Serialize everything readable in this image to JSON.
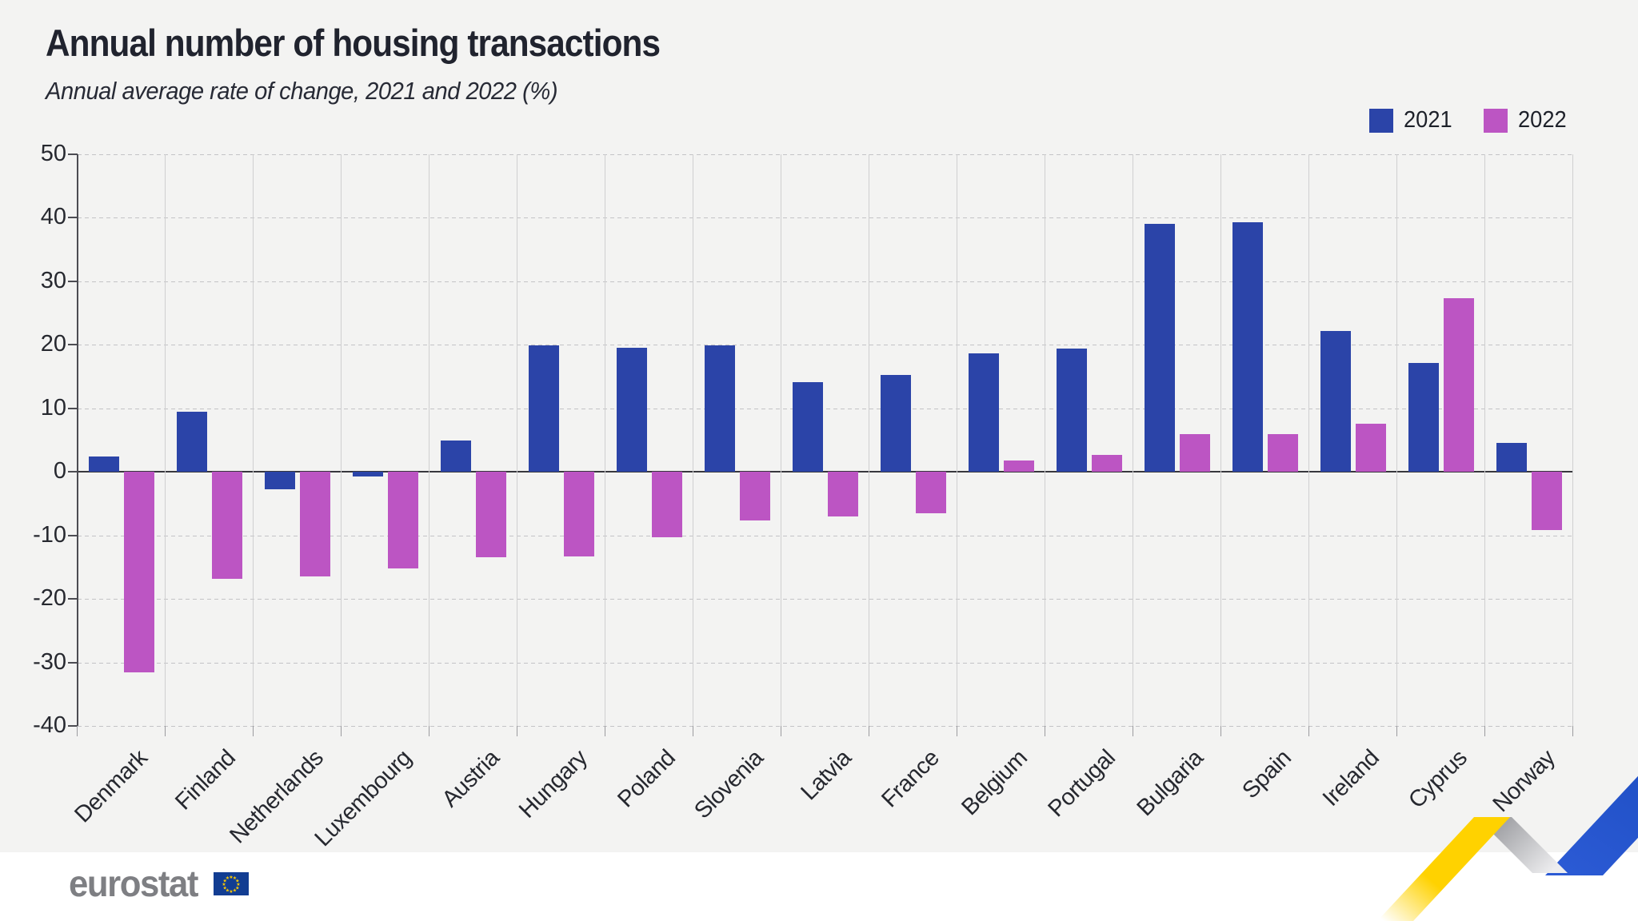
{
  "title": "Annual number of housing transactions",
  "subtitle": "Annual average rate of change, 2021 and 2022 (%)",
  "legend": [
    {
      "label": "2021",
      "color": "#2b44a8"
    },
    {
      "label": "2022",
      "color": "#bc55c3"
    }
  ],
  "chart_data": {
    "type": "bar",
    "title": "Annual number of housing transactions",
    "subtitle": "Annual average rate of change, 2021 and 2022 (%)",
    "categories": [
      "Denmark",
      "Finland",
      "Netherlands",
      "Luxembourg",
      "Austria",
      "Hungary",
      "Poland",
      "Slovenia",
      "Latvia",
      "France",
      "Belgium",
      "Portugal",
      "Bulgaria",
      "Spain",
      "Ireland",
      "Cyprus",
      "Norway"
    ],
    "series": [
      {
        "name": "2021",
        "color": "#2b44a8",
        "values": [
          2.4,
          9.5,
          -2.8,
          -0.7,
          5.0,
          19.9,
          19.6,
          19.9,
          14.1,
          15.2,
          18.6,
          19.4,
          39.0,
          39.3,
          22.2,
          17.2,
          4.5
        ]
      },
      {
        "name": "2022",
        "color": "#bc55c3",
        "values": [
          -31.6,
          -16.8,
          -16.4,
          -15.2,
          -13.5,
          -13.3,
          -10.3,
          -7.6,
          -7.0,
          -6.5,
          1.8,
          2.7,
          5.9,
          6.0,
          7.6,
          27.4,
          -9.2
        ]
      }
    ],
    "xlabel": "",
    "ylabel": "",
    "ylim": [
      -40,
      50
    ],
    "yticks": [
      50,
      40,
      30,
      20,
      10,
      0,
      -10,
      -20,
      -30,
      -40
    ],
    "grid": "horizontal-dashed, vertical-solid-column-separators",
    "legend_position": "top-right"
  },
  "footer": {
    "logo_text": "eurostat"
  },
  "colors": {
    "background_card": "#f3f3f2",
    "background_page": "#ffffff",
    "bar_2021": "#2b44a8",
    "bar_2022": "#bc55c3",
    "gridline": "#c3c3c6",
    "zero_line": "#38383d",
    "text_dark": "#20232e",
    "logo_gray": "#7e7f83",
    "eu_flag_blue": "#123d92",
    "eu_star_yellow": "#ffcc00",
    "ribbon_yellow": "#ffd200",
    "ribbon_gray": "#9fa0a4",
    "ribbon_blue": "#2453c9"
  }
}
